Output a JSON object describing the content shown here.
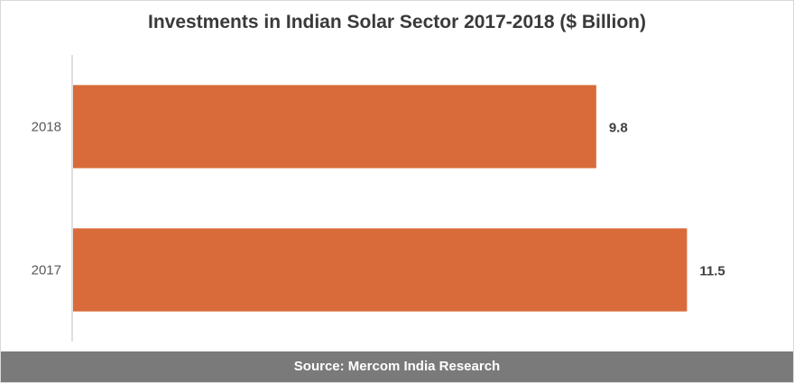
{
  "chart_data": {
    "type": "bar",
    "orientation": "horizontal",
    "title": "Investments in Indian Solar Sector 2017-2018 ($ Billion)",
    "categories": [
      "2018",
      "2017"
    ],
    "values": [
      9.8,
      11.5
    ],
    "value_labels": [
      "9.8",
      "11.5"
    ],
    "xlim": [
      0,
      13.2
    ],
    "grid": false,
    "bar_color": "#d96b3a"
  },
  "footer": {
    "source": "Source: Mercom India Research"
  }
}
